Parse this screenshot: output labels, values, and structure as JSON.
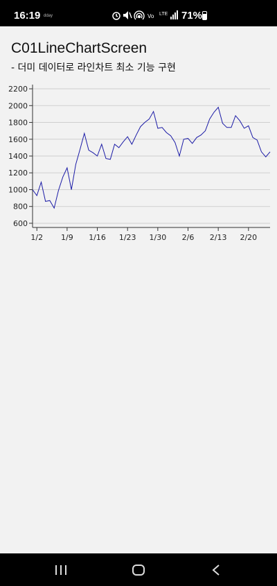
{
  "status_bar": {
    "time": "16:19",
    "mini_label": "dday",
    "battery": "71%",
    "icons": [
      "alarm-icon",
      "mute-icon",
      "hotspot-icon",
      "volte-icon",
      "lte-icon",
      "signal-icon",
      "battery-icon"
    ]
  },
  "page": {
    "title": "C01LineChartScreen",
    "subtitle": "- 더미 데이터로 라인차트 최소 기능 구현"
  },
  "chart_data": {
    "type": "line",
    "title": "",
    "xlabel": "",
    "ylabel": "",
    "x_ticks": [
      "1/2",
      "1/9",
      "1/16",
      "1/23",
      "1/30",
      "2/6",
      "2/13",
      "2/20"
    ],
    "y_ticks": [
      600,
      800,
      1000,
      1200,
      1400,
      1600,
      1800,
      2000,
      2200
    ],
    "ylim": [
      550,
      2250
    ],
    "xlim": [
      "1/1",
      "2/25"
    ],
    "grid": "horizontal",
    "line_color": "#1a1aa6",
    "series": [
      {
        "x": [
          "1/1",
          "1/2",
          "1/3",
          "1/4",
          "1/5",
          "1/6",
          "1/7",
          "1/8",
          "1/9",
          "1/10",
          "1/11",
          "1/12",
          "1/13",
          "1/14",
          "1/15",
          "1/16",
          "1/17",
          "1/18",
          "1/19",
          "1/20",
          "1/21",
          "1/22",
          "1/23",
          "1/24",
          "1/25",
          "1/26",
          "1/27",
          "1/28",
          "1/29",
          "1/30",
          "1/31",
          "2/1",
          "2/2",
          "2/3",
          "2/4",
          "2/5",
          "2/6",
          "2/7",
          "2/8",
          "2/9",
          "2/10",
          "2/11",
          "2/12",
          "2/13",
          "2/14",
          "2/15",
          "2/16",
          "2/17",
          "2/18",
          "2/19",
          "2/20",
          "2/21",
          "2/22",
          "2/23",
          "2/24",
          "2/25"
        ],
        "y": [
          1000,
          930,
          1090,
          860,
          870,
          780,
          990,
          1150,
          1260,
          1000,
          1300,
          1480,
          1670,
          1470,
          1440,
          1400,
          1540,
          1370,
          1360,
          1540,
          1500,
          1570,
          1630,
          1540,
          1650,
          1750,
          1800,
          1840,
          1930,
          1730,
          1740,
          1680,
          1640,
          1560,
          1400,
          1600,
          1610,
          1550,
          1620,
          1650,
          1700,
          1840,
          1920,
          1980,
          1790,
          1740,
          1740,
          1880,
          1820,
          1730,
          1760,
          1620,
          1590,
          1450,
          1390,
          1450
        ]
      }
    ]
  },
  "nav_bar": {
    "recents_icon": "recents-icon",
    "home_icon": "home-icon",
    "back_icon": "back-icon"
  }
}
